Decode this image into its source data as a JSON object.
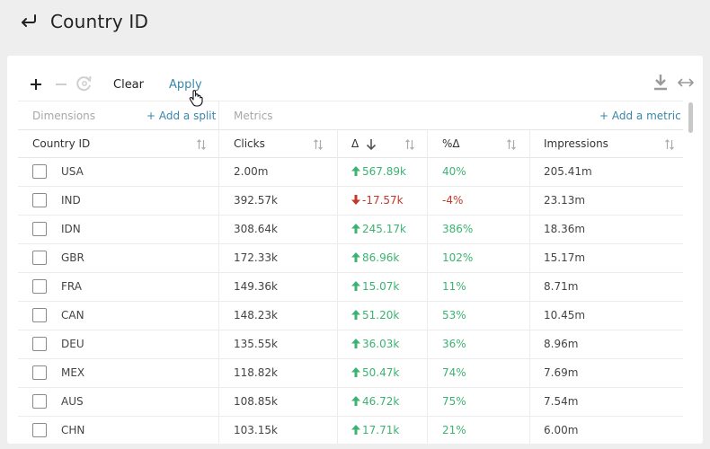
{
  "header": {
    "title": "Country ID",
    "back_icon": "back-arrow-icon"
  },
  "toolbar": {
    "add_icon": "plus-icon",
    "remove_icon": "minus-icon",
    "reset_icon": "refresh-icon",
    "clear_label": "Clear",
    "apply_label": "Apply",
    "download_icon": "download-icon",
    "expand_icon": "expand-icon"
  },
  "sections": {
    "dimensions_label": "Dimensions",
    "add_split_label": "+ Add a split",
    "metrics_label": "Metrics",
    "add_metric_label": "+ Add a metric"
  },
  "table": {
    "columns": [
      "Country ID",
      "Clicks",
      "Δ",
      "%Δ",
      "Impressions"
    ],
    "rows": [
      {
        "country": "USA",
        "clicks": "2.00m",
        "delta": "567.89k",
        "delta_dir": "up",
        "pct": "40%",
        "impressions": "205.41m"
      },
      {
        "country": "IND",
        "clicks": "392.57k",
        "delta": "-17.57k",
        "delta_dir": "down",
        "pct": "-4%",
        "impressions": "23.13m"
      },
      {
        "country": "IDN",
        "clicks": "308.64k",
        "delta": "245.17k",
        "delta_dir": "up",
        "pct": "386%",
        "impressions": "18.36m"
      },
      {
        "country": "GBR",
        "clicks": "172.33k",
        "delta": "86.96k",
        "delta_dir": "up",
        "pct": "102%",
        "impressions": "15.17m"
      },
      {
        "country": "FRA",
        "clicks": "149.36k",
        "delta": "15.07k",
        "delta_dir": "up",
        "pct": "11%",
        "impressions": "8.71m"
      },
      {
        "country": "CAN",
        "clicks": "148.23k",
        "delta": "51.20k",
        "delta_dir": "up",
        "pct": "53%",
        "impressions": "10.45m"
      },
      {
        "country": "DEU",
        "clicks": "135.55k",
        "delta": "36.03k",
        "delta_dir": "up",
        "pct": "36%",
        "impressions": "8.96m"
      },
      {
        "country": "MEX",
        "clicks": "118.82k",
        "delta": "50.47k",
        "delta_dir": "up",
        "pct": "74%",
        "impressions": "7.69m"
      },
      {
        "country": "AUS",
        "clicks": "108.85k",
        "delta": "46.72k",
        "delta_dir": "up",
        "pct": "75%",
        "impressions": "7.54m"
      },
      {
        "country": "CHN",
        "clicks": "103.15k",
        "delta": "17.71k",
        "delta_dir": "up",
        "pct": "21%",
        "impressions": "6.00m"
      }
    ]
  },
  "colors": {
    "link": "#3a86a8",
    "positive": "#3cb371",
    "negative": "#c0392b"
  }
}
